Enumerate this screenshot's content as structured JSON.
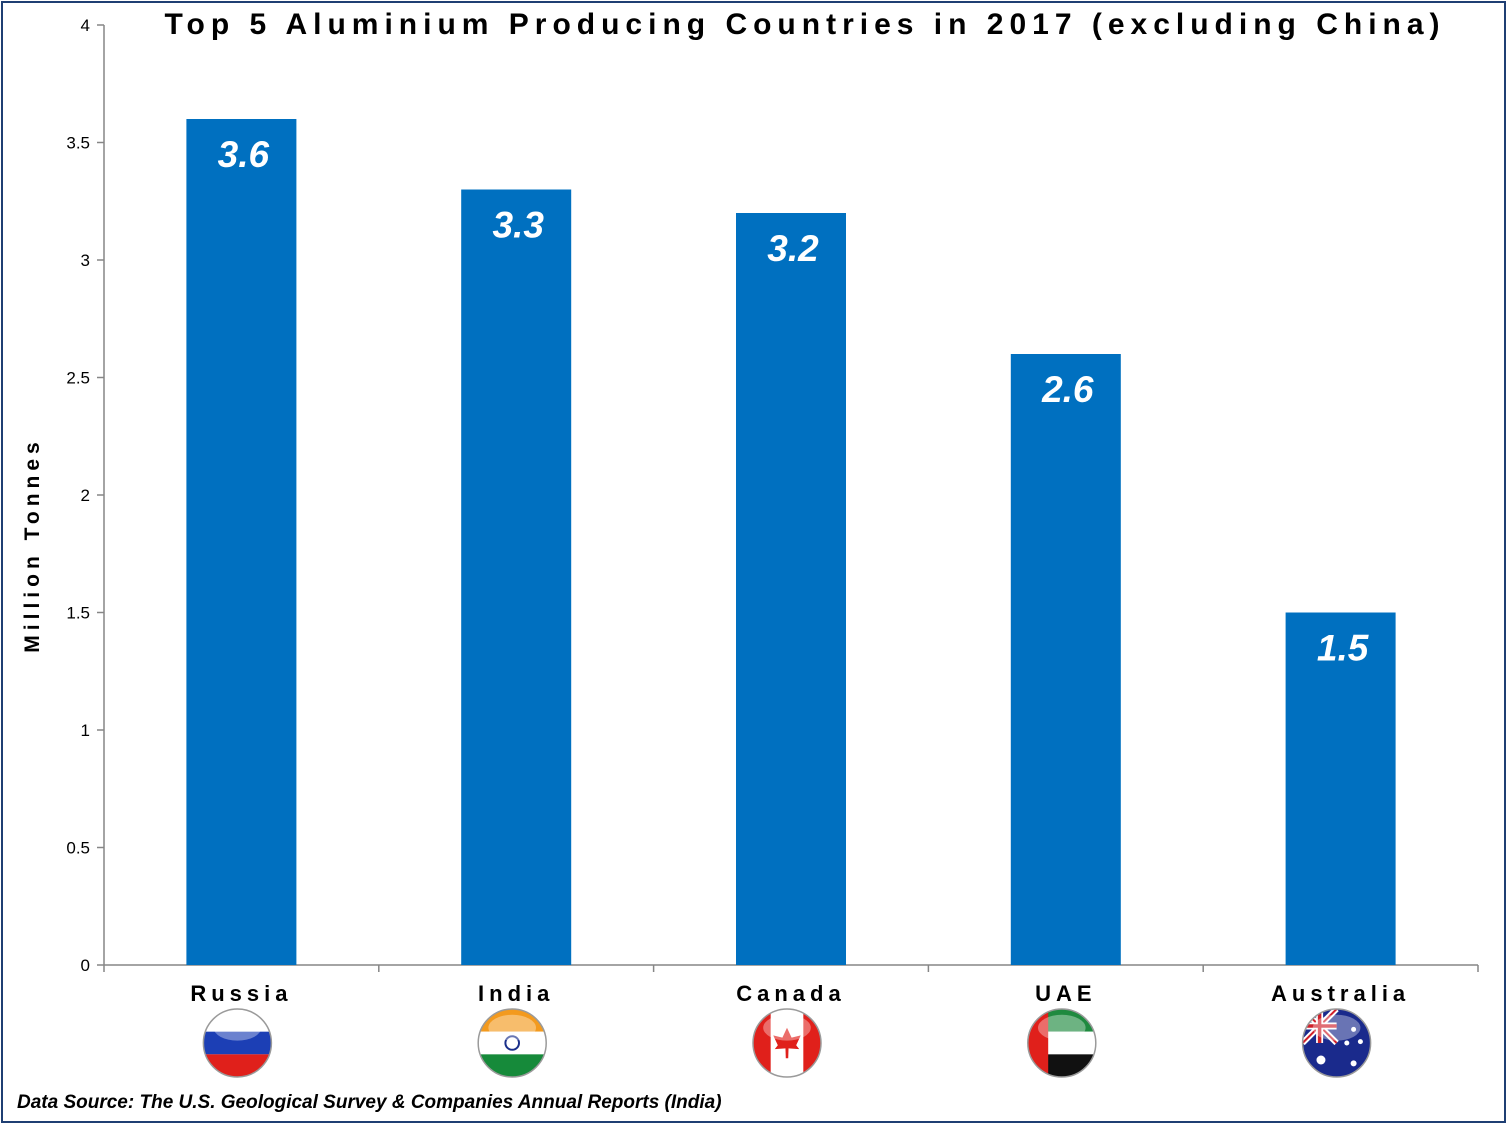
{
  "chart_data": {
    "type": "bar",
    "title": "Top 5 Aluminium Producing Countries in 2017 (excluding China)",
    "xlabel": "",
    "ylabel": "Million Tonnes",
    "ylim": [
      0,
      4
    ],
    "yticks": [
      "0",
      "0.5",
      "1",
      "1.5",
      "2",
      "2.5",
      "3",
      "3.5",
      "4"
    ],
    "categories": [
      "Russia",
      "India",
      "Canada",
      "UAE",
      "Australia"
    ],
    "values": [
      3.6,
      3.3,
      3.2,
      2.6,
      1.5
    ],
    "value_labels": [
      "3.6",
      "3.3",
      "3.2",
      "2.6",
      "1.5"
    ],
    "flags": [
      "russia-flag-icon",
      "india-flag-icon",
      "canada-flag-icon",
      "uae-flag-icon",
      "australia-flag-icon"
    ],
    "bar_color": "#0070c0",
    "grid": false,
    "legend": "none"
  },
  "source_text": "Data Source: The U.S. Geological Survey & Companies Annual Reports (India)"
}
